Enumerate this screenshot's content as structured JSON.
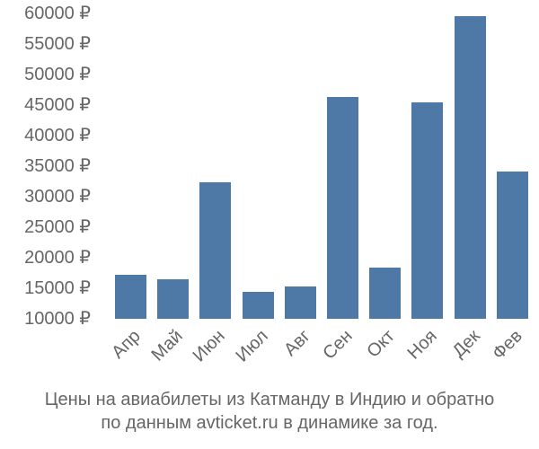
{
  "chart_data": {
    "type": "bar",
    "title": "Цены на авиабилеты из Катманду в Индию и обратно по данным avticket.ru в динамике за год.",
    "xlabel": "",
    "ylabel": "",
    "categories": [
      "Апр",
      "Май",
      "Июн",
      "Июл",
      "Авг",
      "Сен",
      "Окт",
      "Ноя",
      "Дек",
      "Фев"
    ],
    "values": [
      17200,
      16500,
      32400,
      14400,
      15300,
      46300,
      18400,
      45400,
      59600,
      34100
    ],
    "ylim": [
      10000,
      60000
    ],
    "yticks": [
      10000,
      15000,
      20000,
      25000,
      30000,
      35000,
      40000,
      45000,
      50000,
      55000,
      60000
    ],
    "ytick_labels": [
      "10000 ₽",
      "15000 ₽",
      "20000 ₽",
      "25000 ₽",
      "30000 ₽",
      "35000 ₽",
      "40000 ₽",
      "45000 ₽",
      "50000 ₽",
      "55000 ₽",
      "60000 ₽"
    ],
    "grid": false,
    "legend": "none",
    "bar_color": "#4e79a7"
  },
  "caption": {
    "line1": "Цены на авиабилеты из Катманду в Индию и обратно",
    "line2": "по данным avticket.ru в динамике за год."
  }
}
